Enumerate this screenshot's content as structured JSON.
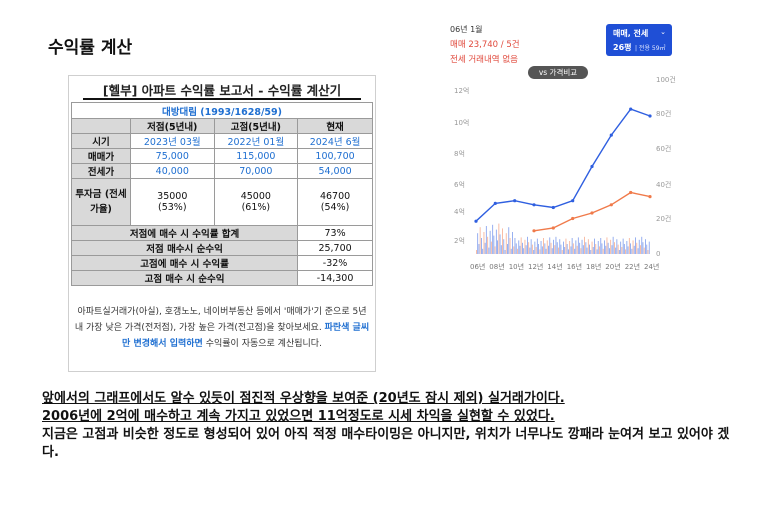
{
  "title": "수익률 계산",
  "report": {
    "title": "[헬부] 아파트 수익률 보고서 - 수익률 계산기",
    "apartment": "대방대림 (1993/1628/59)",
    "headers": [
      "시기",
      "저점(5년내)",
      "고점(5년내)",
      "현재"
    ],
    "col_labels": [
      "저점(5년내)",
      "고점(5년내)",
      "현재"
    ],
    "rows": [
      {
        "label": "시기",
        "values": [
          "2023년 03월",
          "2022년 01월",
          "2024년 6월"
        ]
      },
      {
        "label": "매매가",
        "values": [
          "75,000",
          "115,000",
          "100,700"
        ]
      },
      {
        "label": "전세가",
        "values": [
          "40,000",
          "70,000",
          "54,000"
        ]
      }
    ],
    "invest": {
      "label": "투자금 (전세가율)",
      "values": [
        "35000",
        "45000",
        "46700"
      ],
      "ratios": [
        "(53%)",
        "(61%)",
        "(54%)"
      ]
    },
    "summary": [
      {
        "label": "저점에 매수 시 수익률 합계",
        "value": "73%"
      },
      {
        "label": "저점 매수시 순수익",
        "value": "25,700"
      },
      {
        "label": "고점에 매수 시 수익률",
        "value": "-32%"
      },
      {
        "label": "고점 매수 시 순수익",
        "value": "-14,300"
      }
    ],
    "note_a": "아파트실거래가(아실), 호갱노노, 네이버부동산 등에서 '매매가'기 준으로 5년 내 가장 낮은 가격(전저점), 가장 높은 가격(전고점)을 찾아보세요.",
    "note_hl": "파란색 글씨만 변경해서 입력하면",
    "note_b": "수익률이 자동으로 계산됩니다."
  },
  "price_chart": {
    "month": "06년 1월",
    "price": "매매 23,740 / 5건",
    "none": "전세 거래내역 없음",
    "select_title": "매매, 전세",
    "select_area": "26평",
    "select_area_sub": "| 전용 59㎡",
    "compare": "vs 가격비교",
    "y_left": [
      "12억",
      "10억",
      "8억",
      "6억",
      "4억",
      "2억"
    ],
    "y_right": [
      "100건",
      "80건",
      "60건",
      "40건",
      "20건",
      "0"
    ],
    "x_labels": [
      "06년",
      "08년",
      "10년",
      "12년",
      "14년",
      "16년",
      "18년",
      "20년",
      "22년",
      "24년"
    ],
    "colors": {
      "sale": "#2f5fe0",
      "lease": "#f07a4a"
    }
  },
  "chart_data": {
    "type": "line",
    "x": [
      "06년",
      "08년",
      "10년",
      "12년",
      "14년",
      "16년",
      "18년",
      "20년",
      "22년",
      "24년"
    ],
    "series": [
      {
        "name": "매매",
        "values": [
          2.4,
          3.7,
          3.9,
          3.6,
          3.4,
          3.9,
          6.4,
          8.7,
          10.6,
          10.1
        ]
      },
      {
        "name": "전세",
        "values": [
          null,
          null,
          null,
          1.7,
          1.9,
          2.6,
          3.0,
          3.6,
          4.5,
          4.2
        ]
      }
    ],
    "ylim": [
      0,
      12
    ],
    "yunit": "억"
  },
  "body": {
    "line1": "앞에서의 그래프에서도 알수 있듯이 점진적 우상향을 보여준 (20년도 잠시 제외) 실거래가이다.",
    "line2": "2006년에 2억에 매수하고 계속 가지고 있었으면 11억정도로 시세 차익을 실현할 수 있었다.",
    "line3": "지금은 고점과 비슷한 정도로 형성되어 있어 아직 적정 매수타이밍은 아니지만, 위치가 너무나도 깡패라 눈여겨 보고 있어야 겠다."
  }
}
